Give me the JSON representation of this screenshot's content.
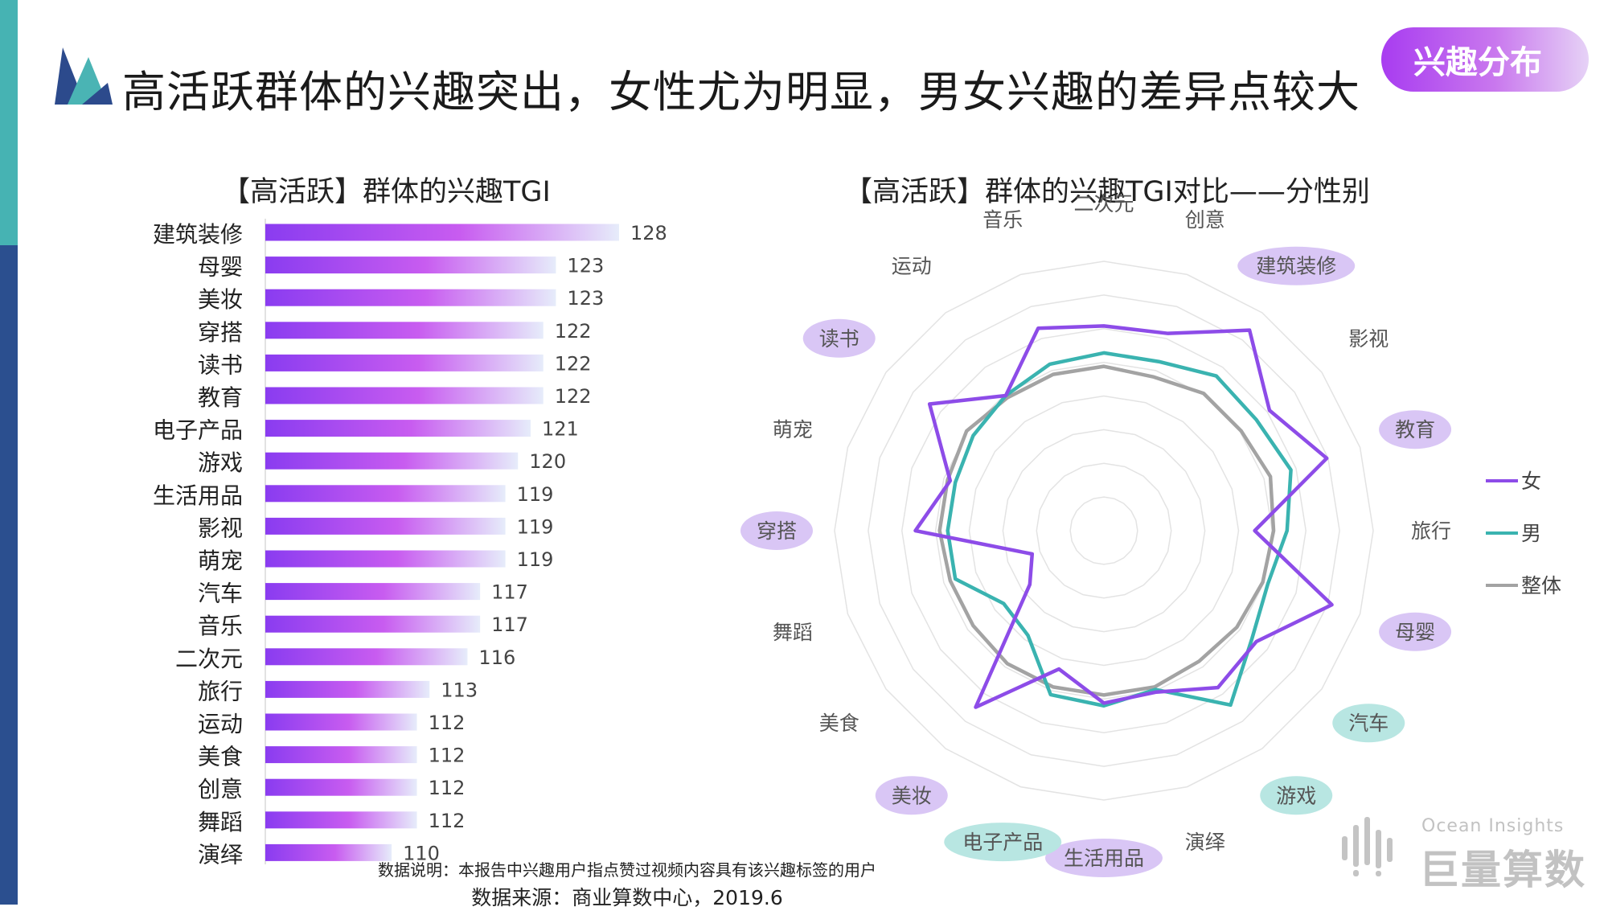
{
  "header": {
    "title": "高活跃群体的兴趣突出，女性尤为明显，男女兴趣的差异点较大",
    "badge": "兴趣分布"
  },
  "footer": {
    "note": "数据说明：本报告中兴趣用户指点赞过视频内容具有该兴趣标签的用户",
    "source": "数据来源：商业算数中心，2019.6"
  },
  "brand": {
    "en": "Ocean Insights",
    "cn": "巨量算数"
  },
  "colors": {
    "bar_start": "#8a3cf0",
    "bar_mid": "#c85cf0",
    "bar_end": "#dfe8fa",
    "female": "#8d4ce8",
    "male": "#3ab3b0",
    "overall": "#a3a3a3",
    "highlight_purple": "#d9c6f5",
    "highlight_teal": "#b8e6e2"
  },
  "chart_data": [
    {
      "type": "bar",
      "title": "【高活跃】群体的兴趣TGI",
      "categories": [
        "建筑装修",
        "母婴",
        "美妆",
        "穿搭",
        "读书",
        "教育",
        "电子产品",
        "游戏",
        "生活用品",
        "影视",
        "萌宠",
        "汽车",
        "音乐",
        "二次元",
        "旅行",
        "运动",
        "美食",
        "创意",
        "舞蹈",
        "演绎"
      ],
      "values": [
        128,
        123,
        123,
        122,
        122,
        122,
        121,
        120,
        119,
        119,
        119,
        117,
        117,
        116,
        113,
        112,
        112,
        112,
        112,
        110
      ],
      "orientation": "horizontal",
      "grid": false
    },
    {
      "type": "radar",
      "title": "【高活跃】群体的兴趣TGI对比——分性别",
      "axes": [
        "二次元",
        "创意",
        "建筑装修",
        "影视",
        "教育",
        "旅行",
        "母婴",
        "汽车",
        "游戏",
        "演绎",
        "生活用品",
        "电子产品",
        "美妆",
        "美食",
        "舞蹈",
        "穿搭",
        "萌宠",
        "读书",
        "运动",
        "音乐"
      ],
      "highlighted_axes_female": [
        "建筑装修",
        "教育",
        "母婴",
        "生活用品",
        "美妆",
        "穿搭",
        "读书"
      ],
      "highlighted_axes_male": [
        "汽车",
        "游戏",
        "电子产品"
      ],
      "rings": 8,
      "series": [
        {
          "name": "女",
          "values": [
            0.76,
            0.77,
            0.92,
            0.76,
            0.87,
            0.56,
            0.89,
            0.7,
            0.72,
            0.63,
            0.64,
            0.54,
            0.81,
            0.34,
            0.28,
            0.7,
            0.6,
            0.8,
            0.62,
            0.79
          ]
        },
        {
          "name": "男",
          "values": [
            0.66,
            0.66,
            0.71,
            0.7,
            0.73,
            0.68,
            0.64,
            0.68,
            0.8,
            0.62,
            0.65,
            0.64,
            0.48,
            0.46,
            0.58,
            0.58,
            0.58,
            0.6,
            0.62,
            0.65
          ]
        },
        {
          "name": "整体",
          "values": [
            0.61,
            0.6,
            0.63,
            0.63,
            0.65,
            0.63,
            0.62,
            0.61,
            0.6,
            0.61,
            0.61,
            0.61,
            0.61,
            0.6,
            0.6,
            0.61,
            0.61,
            0.63,
            0.61,
            0.61
          ]
        }
      ],
      "legend": "right"
    }
  ]
}
